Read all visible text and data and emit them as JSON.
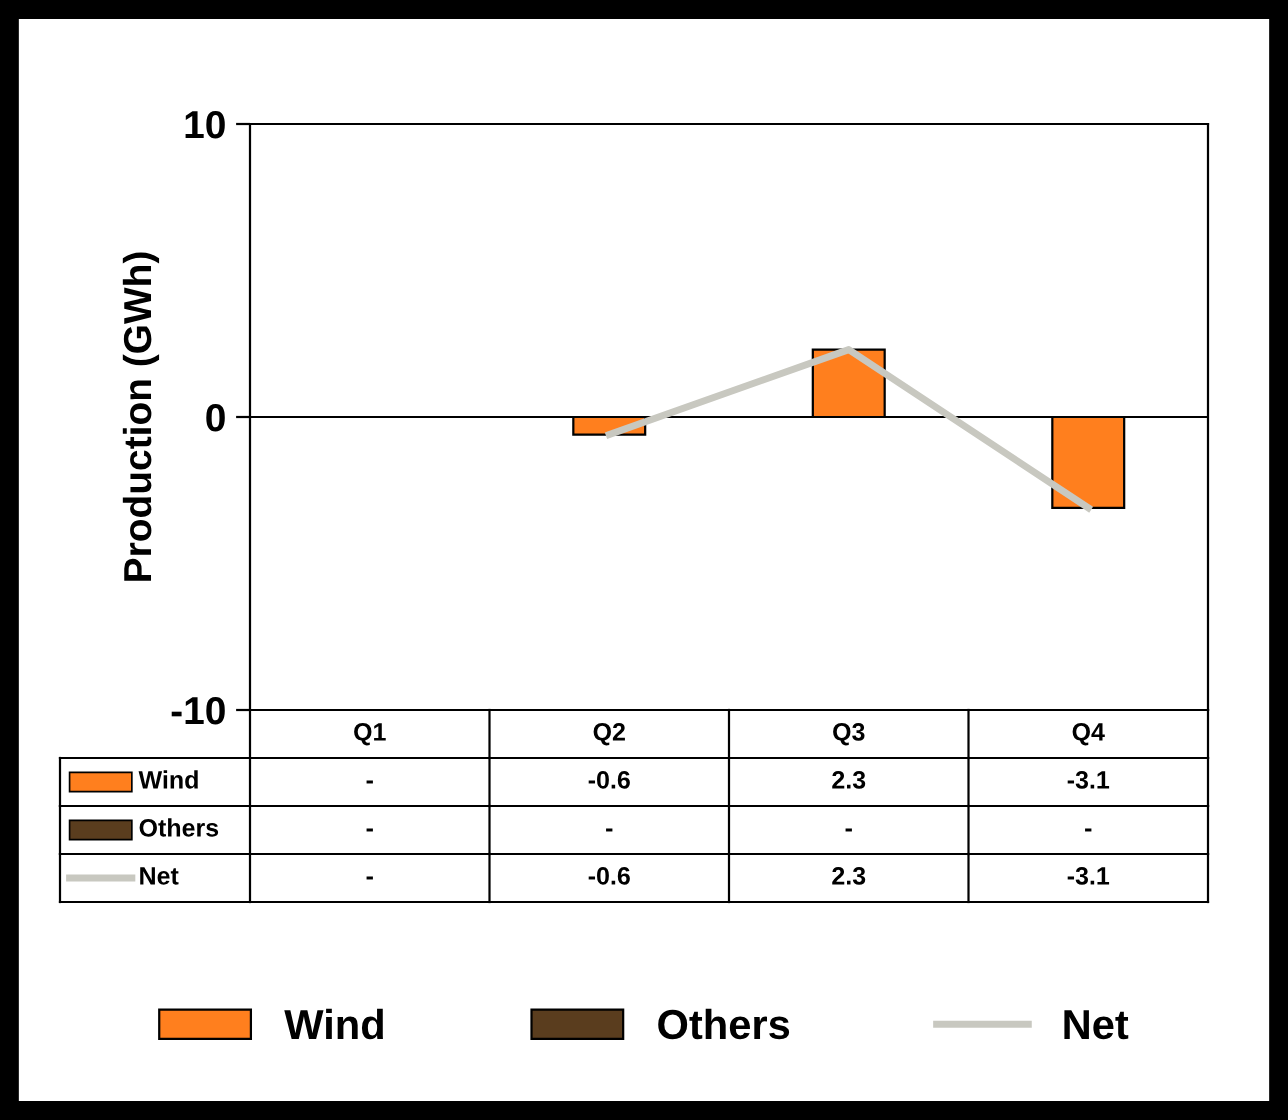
{
  "chart_data": {
    "type": "bar",
    "ylabel": "Production (GWh)",
    "categories": [
      "Q1",
      "Q2",
      "Q3",
      "Q4"
    ],
    "series": [
      {
        "name": "Wind",
        "color": "#ff7f1e",
        "values": [
          null,
          -0.6,
          2.3,
          -3.1
        ],
        "value_labels": [
          "-",
          "-0.6",
          "2.3",
          "-3.1"
        ]
      },
      {
        "name": "Others",
        "color": "#5a3d1e",
        "values": [
          null,
          null,
          null,
          null
        ],
        "value_labels": [
          "-",
          "-",
          "-",
          "-"
        ]
      },
      {
        "name": "Net",
        "type": "line",
        "color": "#c8c8c0",
        "values": [
          null,
          -0.6,
          2.3,
          -3.1
        ],
        "value_labels": [
          "-",
          "-0.6",
          "2.3",
          "-3.1"
        ]
      }
    ],
    "stacked": true,
    "ylim": [
      -10,
      10
    ],
    "yticks": [
      -10,
      0,
      10
    ],
    "ref_lines": [
      {
        "axis": "y",
        "value": 0,
        "color": "#000000"
      }
    ],
    "grid": false,
    "legend": "bottom",
    "line_style": "solid",
    "marker": "none"
  }
}
